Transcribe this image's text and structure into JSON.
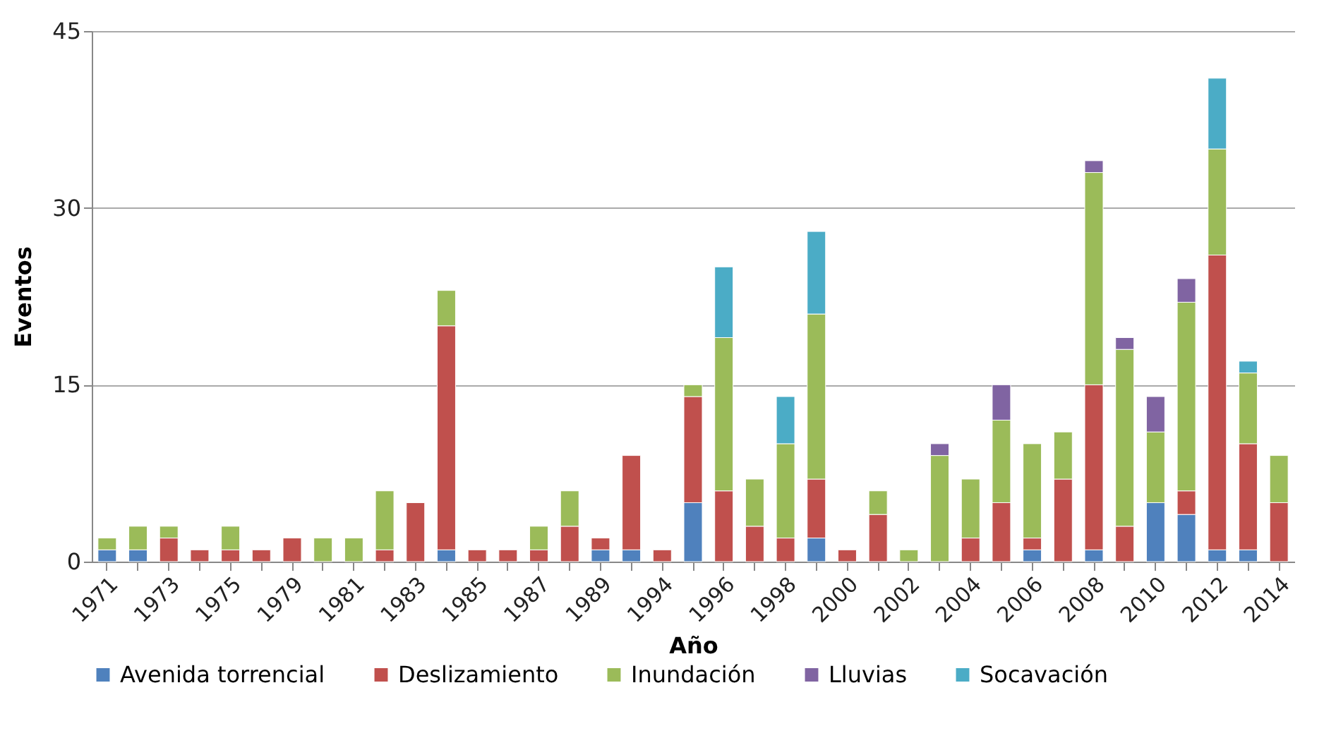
{
  "chart_data": {
    "type": "bar",
    "stacked": true,
    "xlabel": "Año",
    "ylabel": "Eventos",
    "categories": [
      "1971",
      null,
      "1973",
      null,
      "1975",
      null,
      "1979",
      null,
      "1981",
      null,
      "1983",
      null,
      "1985",
      null,
      "1987",
      null,
      "1989",
      null,
      "1994",
      null,
      "1996",
      null,
      "1998",
      null,
      "2000",
      null,
      "2002",
      null,
      "2004",
      null,
      "2006",
      null,
      "2008",
      null,
      "2010",
      null,
      "2012",
      null,
      "2014"
    ],
    "series": [
      {
        "name": "Avenida torrencial",
        "color": "#4f81bd",
        "values": [
          1,
          1,
          null,
          null,
          null,
          null,
          null,
          null,
          null,
          null,
          null,
          1,
          null,
          null,
          null,
          null,
          1,
          1,
          null,
          5,
          null,
          null,
          null,
          2,
          null,
          null,
          null,
          null,
          null,
          null,
          1,
          null,
          1,
          null,
          5,
          4,
          1,
          1,
          null
        ]
      },
      {
        "name": "Deslizamiento",
        "color": "#c0504d",
        "values": [
          null,
          null,
          2,
          1,
          1,
          1,
          2,
          null,
          null,
          1,
          5,
          19,
          1,
          1,
          1,
          3,
          1,
          8,
          1,
          9,
          6,
          3,
          2,
          5,
          1,
          4,
          null,
          null,
          2,
          5,
          1,
          7,
          14,
          3,
          null,
          2,
          25,
          9,
          5
        ]
      },
      {
        "name": "Inundación",
        "color": "#9bbb59",
        "values": [
          1,
          2,
          1,
          null,
          2,
          null,
          null,
          2,
          2,
          5,
          null,
          3,
          null,
          null,
          2,
          3,
          null,
          null,
          null,
          1,
          13,
          4,
          8,
          14,
          null,
          2,
          1,
          9,
          5,
          7,
          8,
          4,
          18,
          15,
          6,
          16,
          9,
          6,
          4
        ]
      },
      {
        "name": "Lluvias",
        "color": "#8064a2",
        "values": [
          null,
          null,
          null,
          null,
          null,
          null,
          null,
          null,
          null,
          null,
          null,
          null,
          null,
          null,
          null,
          null,
          null,
          null,
          null,
          null,
          null,
          null,
          null,
          null,
          null,
          null,
          null,
          1,
          null,
          3,
          null,
          null,
          1,
          1,
          3,
          2,
          null,
          null,
          null
        ]
      },
      {
        "name": "Socavación",
        "color": "#4bacc6",
        "values": [
          null,
          null,
          null,
          null,
          null,
          null,
          null,
          null,
          null,
          null,
          null,
          null,
          null,
          null,
          null,
          null,
          null,
          null,
          null,
          null,
          6,
          null,
          4,
          7,
          null,
          null,
          null,
          null,
          null,
          null,
          null,
          null,
          null,
          null,
          null,
          null,
          6,
          1,
          null
        ]
      }
    ],
    "ylim": [
      0,
      45
    ],
    "yticks": [
      0,
      15,
      30,
      45
    ],
    "grid": "y",
    "legend": "bottom"
  }
}
